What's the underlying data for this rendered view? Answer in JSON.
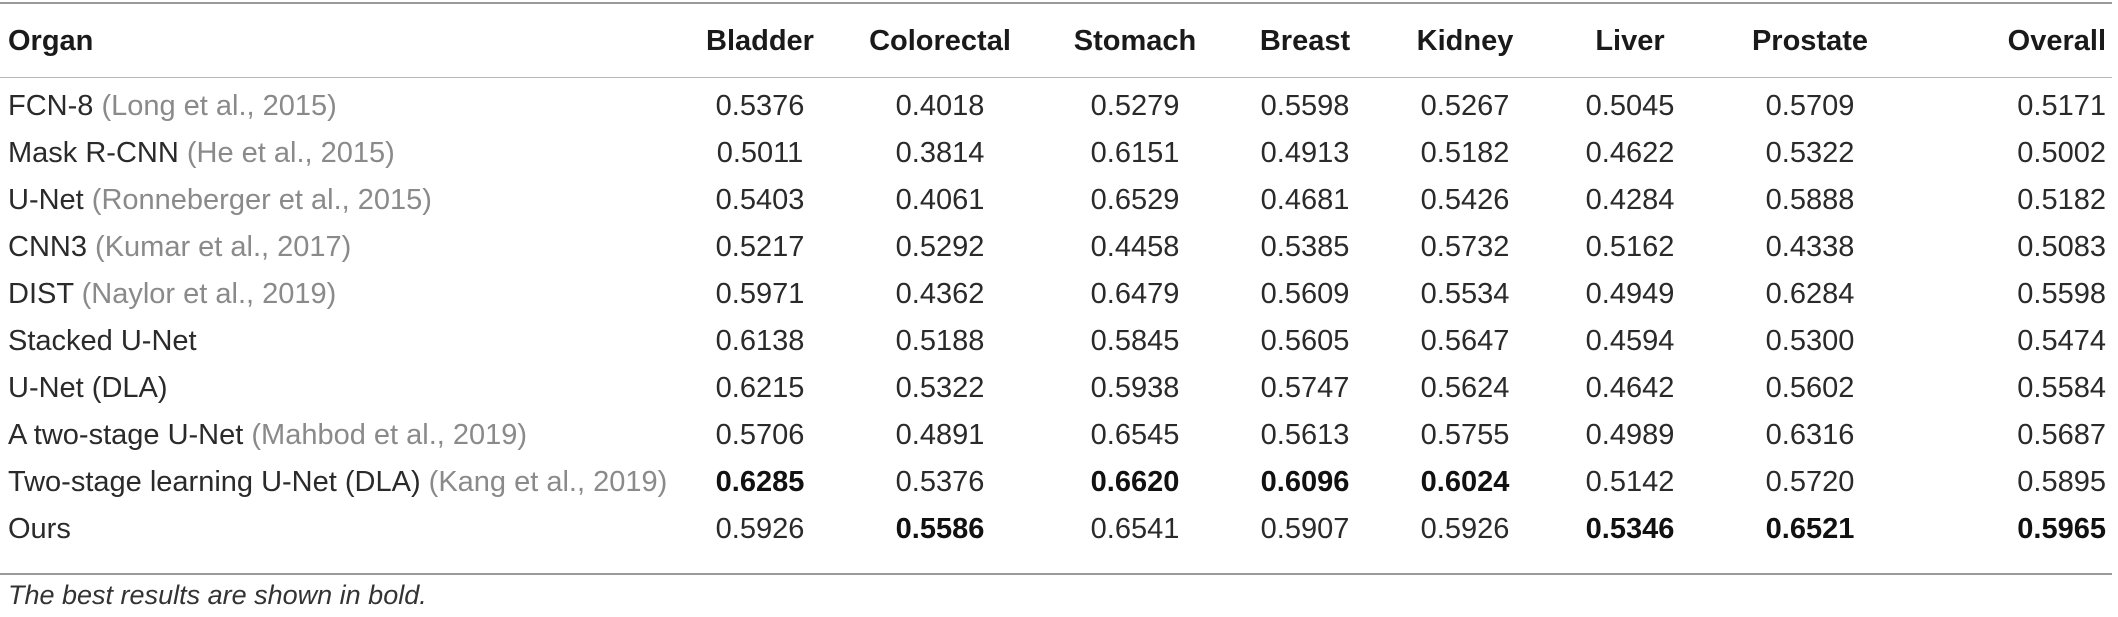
{
  "table": {
    "headers": [
      "Organ",
      "Bladder",
      "Colorectal",
      "Stomach",
      "Breast",
      "Kidney",
      "Liver",
      "Prostate",
      "Overall"
    ],
    "rows": [
      {
        "method": "FCN-8",
        "cite": "(Long et al., 2015)",
        "values": [
          "0.5376",
          "0.4018",
          "0.5279",
          "0.5598",
          "0.5267",
          "0.5045",
          "0.5709",
          "0.5171"
        ],
        "bold": []
      },
      {
        "method": "Mask R-CNN",
        "cite": "(He et al., 2015)",
        "values": [
          "0.5011",
          "0.3814",
          "0.6151",
          "0.4913",
          "0.5182",
          "0.4622",
          "0.5322",
          "0.5002"
        ],
        "bold": []
      },
      {
        "method": "U-Net",
        "cite": "(Ronneberger et al., 2015)",
        "values": [
          "0.5403",
          "0.4061",
          "0.6529",
          "0.4681",
          "0.5426",
          "0.4284",
          "0.5888",
          "0.5182"
        ],
        "bold": []
      },
      {
        "method": "CNN3",
        "cite": "(Kumar et al., 2017)",
        "values": [
          "0.5217",
          "0.5292",
          "0.4458",
          "0.5385",
          "0.5732",
          "0.5162",
          "0.4338",
          "0.5083"
        ],
        "bold": []
      },
      {
        "method": "DIST",
        "cite": "(Naylor et al., 2019)",
        "values": [
          "0.5971",
          "0.4362",
          "0.6479",
          "0.5609",
          "0.5534",
          "0.4949",
          "0.6284",
          "0.5598"
        ],
        "bold": []
      },
      {
        "method": "Stacked U-Net",
        "cite": "",
        "values": [
          "0.6138",
          "0.5188",
          "0.5845",
          "0.5605",
          "0.5647",
          "0.4594",
          "0.5300",
          "0.5474"
        ],
        "bold": []
      },
      {
        "method": "U-Net (DLA)",
        "cite": "",
        "values": [
          "0.6215",
          "0.5322",
          "0.5938",
          "0.5747",
          "0.5624",
          "0.4642",
          "0.5602",
          "0.5584"
        ],
        "bold": []
      },
      {
        "method": "A two-stage U-Net",
        "cite": "(Mahbod et al., 2019)",
        "values": [
          "0.5706",
          "0.4891",
          "0.6545",
          "0.5613",
          "0.5755",
          "0.4989",
          "0.6316",
          "0.5687"
        ],
        "bold": []
      },
      {
        "method": "Two-stage learning U-Net (DLA)",
        "cite": "(Kang et al., 2019)",
        "values": [
          "0.6285",
          "0.5376",
          "0.6620",
          "0.6096",
          "0.6024",
          "0.5142",
          "0.5720",
          "0.5895"
        ],
        "bold": [
          0,
          2,
          3,
          4
        ]
      },
      {
        "method": "Ours",
        "cite": "",
        "values": [
          "0.5926",
          "0.5586",
          "0.6541",
          "0.5907",
          "0.5926",
          "0.5346",
          "0.6521",
          "0.5965"
        ],
        "bold": [
          1,
          5,
          6,
          7
        ]
      }
    ]
  },
  "footnote": "The best results are shown in bold."
}
